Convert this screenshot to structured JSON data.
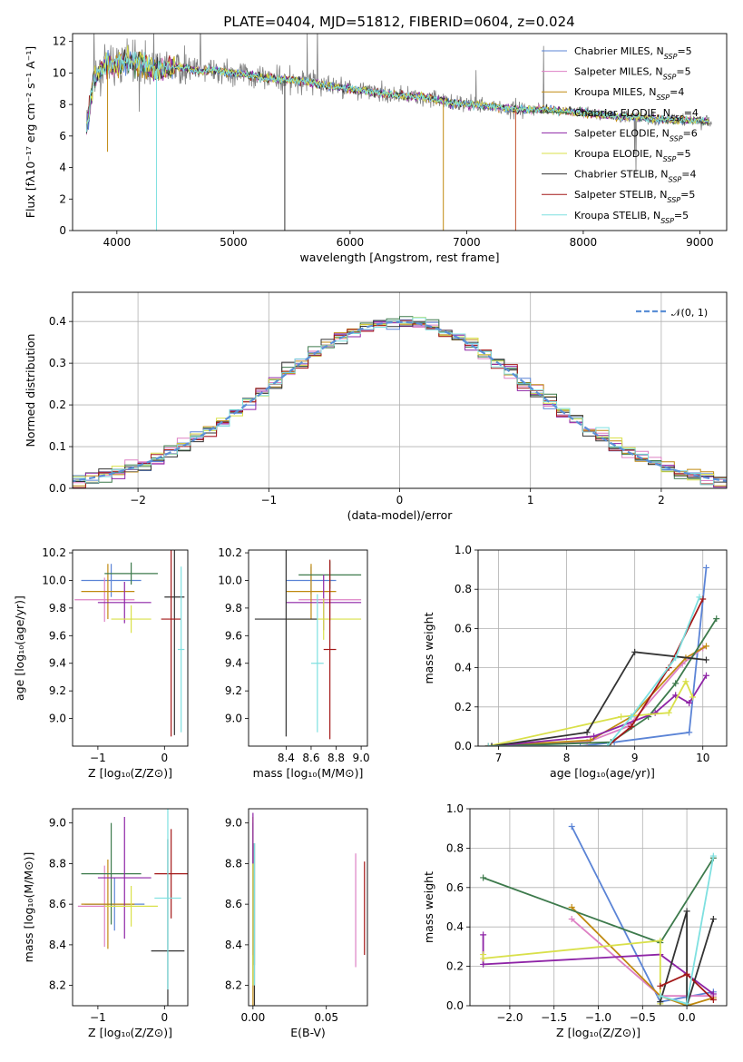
{
  "colors": [
    "#5b84d6",
    "#dd80c4",
    "#c08a10",
    "#3d7a4c",
    "#8e24a6",
    "#d9e04a",
    "#333333",
    "#a31818",
    "#7ee0e0"
  ],
  "chart_data": [
    {
      "id": "spectrum",
      "type": "line",
      "title": "PLATE=0404, MJD=51812, FIBERID=0604, z=0.024",
      "xlabel": "wavelength [Angstrom, rest frame]",
      "ylabel": "Flux [fλ10⁻¹⁷ erg cm⁻² s⁻¹ A⁻¹]",
      "xlim": [
        3620,
        9230
      ],
      "ylim": [
        0,
        12.5
      ],
      "xticks": [
        4000,
        5000,
        6000,
        7000,
        8000,
        9000
      ],
      "yticks": [
        0,
        2,
        4,
        6,
        8,
        10,
        12
      ],
      "continuum": {
        "x": [
          3720,
          3800,
          3900,
          4000,
          4100,
          4200,
          4300,
          4400,
          4500,
          4600,
          4700,
          4800,
          4900,
          5000,
          5200,
          5400,
          5600,
          5800,
          6000,
          6200,
          6400,
          6600,
          6800,
          7000,
          7200,
          7400,
          7600,
          7800,
          8000,
          8200,
          8400,
          8600,
          8800,
          9000,
          9100
        ],
        "y": [
          5.5,
          9.5,
          10.5,
          10.5,
          10.8,
          10.6,
          10.2,
          10.3,
          10.4,
          10.3,
          10.1,
          10.2,
          10.1,
          10.0,
          9.8,
          9.6,
          9.5,
          9.2,
          9.0,
          8.8,
          8.6,
          8.5,
          8.2,
          8.0,
          7.9,
          7.7,
          7.7,
          7.6,
          7.5,
          7.3,
          7.2,
          7.1,
          7.0,
          7.0,
          6.9
        ]
      },
      "series_names": [
        "Chabrier MILES, N_SSP=5",
        "Salpeter MILES, N_SSP=5",
        "Kroupa MILES, N_SSP=4",
        "Chabrier ELODIE, N_SSP=4",
        "Salpeter ELODIE, N_SSP=6",
        "Kroupa ELODIE, N_SSP=5",
        "Chabrier STELIB, N_SSP=4",
        "Salpeter STELIB, N_SSP=5",
        "Kroupa STELIB, N_SSP=5"
      ],
      "legend": "upper right"
    },
    {
      "id": "residuals",
      "type": "histogram",
      "xlabel": "(data-model)/error",
      "ylabel": "Normed distribution",
      "xlim": [
        -2.5,
        2.5
      ],
      "ylim": [
        0,
        0.47
      ],
      "xticks": [
        -2,
        -1,
        0,
        1,
        2
      ],
      "yticks": [
        0.0,
        0.1,
        0.2,
        0.3,
        0.4
      ],
      "legend_label": "𝒩(0, 1)",
      "legend": "upper right",
      "grid": true
    },
    {
      "id": "age_vs_Z",
      "type": "errorbar",
      "xlabel": "Z [log₁₀(Z/Z⊙)]",
      "ylabel": "age  [log₁₀(age/yr)]",
      "xlim": [
        -1.38,
        0.35
      ],
      "ylim": [
        8.8,
        10.22
      ],
      "xticks": [
        -1,
        0
      ],
      "yticks": [
        9.0,
        9.2,
        9.4,
        9.6,
        9.8,
        10.0,
        10.2
      ],
      "points": [
        {
          "x": -0.8,
          "xerr": 0.45,
          "y": 10.0,
          "yerr": 0.12
        },
        {
          "x": -0.9,
          "xerr": 0.45,
          "y": 9.86,
          "yerr": 0.16
        },
        {
          "x": -0.85,
          "xerr": 0.4,
          "y": 9.92,
          "yerr": 0.2
        },
        {
          "x": -0.5,
          "xerr": 0.4,
          "y": 10.05,
          "yerr": 0.08
        },
        {
          "x": -0.6,
          "xerr": 0.4,
          "y": 9.84,
          "yerr": 0.15
        },
        {
          "x": -0.5,
          "xerr": 0.3,
          "y": 9.72,
          "yerr": 0.1
        },
        {
          "x": 0.15,
          "xerr": 0.15,
          "y": 9.88,
          "yerr": 1.0
        },
        {
          "x": 0.1,
          "xerr": 0.15,
          "y": 9.72,
          "yerr": 0.85
        },
        {
          "x": 0.25,
          "xerr": 0.05,
          "y": 9.5,
          "yerr": 0.6
        }
      ]
    },
    {
      "id": "age_vs_mass",
      "type": "errorbar",
      "xlabel": "mass [log₁₀(M/M⊙)]",
      "ylabel": "",
      "xlim": [
        8.1,
        9.05
      ],
      "ylim": [
        8.8,
        10.22
      ],
      "xticks": [
        8.4,
        8.6,
        8.8,
        9.0
      ],
      "yticks": [
        9.0,
        9.2,
        9.4,
        9.6,
        9.8,
        10.0,
        10.2
      ],
      "points": [
        {
          "x": 8.6,
          "xerr": 0.2,
          "y": 10.0,
          "yerr": 0.1
        },
        {
          "x": 8.75,
          "xerr": 0.25,
          "y": 9.86,
          "yerr": 0.15
        },
        {
          "x": 8.6,
          "xerr": 0.2,
          "y": 9.92,
          "yerr": 0.2
        },
        {
          "x": 8.75,
          "xerr": 0.25,
          "y": 10.04,
          "yerr": 0.1
        },
        {
          "x": 8.7,
          "xerr": 0.3,
          "y": 9.84,
          "yerr": 0.2
        },
        {
          "x": 8.7,
          "xerr": 0.3,
          "y": 9.72,
          "yerr": 0.15
        },
        {
          "x": 8.4,
          "xerr": 0.25,
          "y": 9.72,
          "yerr": 0.85
        },
        {
          "x": 8.75,
          "xerr": 0.05,
          "y": 9.5,
          "yerr": 0.65
        },
        {
          "x": 8.65,
          "xerr": 0.05,
          "y": 9.4,
          "yerr": 0.5
        }
      ]
    },
    {
      "id": "weight_vs_age",
      "type": "line",
      "xlabel": "age  [log₁₀(age/yr)]",
      "ylabel": "mass weight",
      "xlim": [
        6.7,
        10.35
      ],
      "ylim": [
        0,
        1
      ],
      "xticks": [
        7,
        8,
        9,
        10
      ],
      "yticks": [
        0.0,
        0.2,
        0.4,
        0.6,
        0.8,
        1.0
      ],
      "grid": true,
      "series": [
        {
          "x": [
            6.85,
            8.2,
            8.7,
            9.8,
            10.05
          ],
          "y": [
            0.0,
            0.0,
            0.02,
            0.07,
            0.91
          ]
        },
        {
          "x": [
            6.85,
            8.3,
            8.9,
            9.7,
            10.0
          ],
          "y": [
            0.0,
            0.02,
            0.1,
            0.42,
            0.5
          ]
        },
        {
          "x": [
            6.85,
            8.35,
            8.95,
            9.75,
            10.05
          ],
          "y": [
            0.0,
            0.03,
            0.15,
            0.45,
            0.51
          ]
        },
        {
          "x": [
            6.9,
            8.65,
            9.2,
            9.6,
            10.2
          ],
          "y": [
            0.0,
            0.02,
            0.15,
            0.32,
            0.65
          ]
        },
        {
          "x": [
            6.9,
            8.4,
            9.3,
            9.6,
            9.8,
            10.05
          ],
          "y": [
            0.0,
            0.05,
            0.17,
            0.26,
            0.22,
            0.36
          ]
        },
        {
          "x": [
            6.85,
            8.8,
            9.5,
            9.75,
            9.85
          ],
          "y": [
            0.0,
            0.15,
            0.17,
            0.33,
            0.25
          ]
        },
        {
          "x": [
            6.9,
            8.3,
            9.0,
            10.05
          ],
          "y": [
            0.0,
            0.07,
            0.48,
            0.44
          ]
        },
        {
          "x": [
            6.85,
            8.6,
            8.95,
            9.5,
            10.0
          ],
          "y": [
            0.0,
            0.0,
            0.1,
            0.4,
            0.75
          ]
        },
        {
          "x": [
            6.85,
            8.6,
            8.95,
            9.6,
            9.95
          ],
          "y": [
            0.0,
            0.0,
            0.15,
            0.45,
            0.76
          ]
        }
      ]
    },
    {
      "id": "mass_vs_Z",
      "type": "errorbar",
      "xlabel": "Z [log₁₀(Z/Z⊙)]",
      "ylabel": "mass [log₁₀(M/M⊙)]",
      "xlim": [
        -1.38,
        0.35
      ],
      "ylim": [
        8.1,
        9.07
      ],
      "xticks": [
        -1,
        0
      ],
      "yticks": [
        8.2,
        8.4,
        8.6,
        8.8,
        9.0
      ],
      "points": [
        {
          "x": -0.75,
          "xerr": 0.45,
          "y": 8.6,
          "yerr": 0.13
        },
        {
          "x": -0.9,
          "xerr": 0.4,
          "y": 8.59,
          "yerr": 0.2
        },
        {
          "x": -0.85,
          "xerr": 0.4,
          "y": 8.6,
          "yerr": 0.22
        },
        {
          "x": -0.8,
          "xerr": 0.45,
          "y": 8.75,
          "yerr": 0.25
        },
        {
          "x": -0.6,
          "xerr": 0.4,
          "y": 8.73,
          "yerr": 0.3
        },
        {
          "x": -0.5,
          "xerr": 0.4,
          "y": 8.59,
          "yerr": 0.1
        },
        {
          "x": 0.05,
          "xerr": 0.25,
          "y": 8.37,
          "yerr": 0.55
        },
        {
          "x": 0.1,
          "xerr": 0.25,
          "y": 8.75,
          "yerr": 0.22
        },
        {
          "x": 0.05,
          "xerr": 0.2,
          "y": 8.63,
          "yerr": 0.45
        }
      ]
    },
    {
      "id": "mass_vs_ebv",
      "type": "errorbar",
      "xlabel": "E(B-V)",
      "ylabel": "",
      "xlim": [
        -0.003,
        0.078
      ],
      "ylim": [
        8.1,
        9.07
      ],
      "xticks": [
        0.0,
        0.05
      ],
      "yticks": [
        8.2,
        8.4,
        8.6,
        8.8,
        9.0
      ],
      "points": [
        {
          "x": 0.0,
          "xerr": 0,
          "y": 8.6,
          "yerr": 0.4
        },
        {
          "x": 0.07,
          "xerr": 0,
          "y": 8.57,
          "yerr": 0.28
        },
        {
          "x": 0.0,
          "xerr": 0,
          "y": 8.55,
          "yerr": 0.48
        },
        {
          "x": 0.001,
          "xerr": 0,
          "y": 8.6,
          "yerr": 0.3
        },
        {
          "x": 0.0,
          "xerr": 0,
          "y": 8.7,
          "yerr": 0.35
        },
        {
          "x": 0.0,
          "xerr": 0,
          "y": 8.5,
          "yerr": 0.3
        },
        {
          "x": 0.001,
          "xerr": 0,
          "y": 8.5,
          "yerr": 0.4
        },
        {
          "x": 0.076,
          "xerr": 0,
          "y": 8.58,
          "yerr": 0.23
        },
        {
          "x": 0.001,
          "xerr": 0,
          "y": 8.55,
          "yerr": 0.35
        }
      ]
    },
    {
      "id": "weight_vs_Z",
      "type": "line",
      "xlabel": "Z [log₁₀(Z/Z⊙)]",
      "ylabel": "mass weight",
      "xlim": [
        -2.45,
        0.45
      ],
      "ylim": [
        0,
        1
      ],
      "xticks": [
        -2.0,
        -1.5,
        -1.0,
        -0.5,
        0.0
      ],
      "yticks": [
        0.0,
        0.2,
        0.4,
        0.6,
        0.8,
        1.0
      ],
      "grid": true,
      "series": [
        {
          "x": [
            -1.3,
            -0.3,
            0.3
          ],
          "y": [
            0.91,
            0.02,
            0.07
          ]
        },
        {
          "x": [
            -1.3,
            -0.3,
            0.3
          ],
          "y": [
            0.44,
            0.05,
            0.05
          ]
        },
        {
          "x": [
            -1.3,
            -0.3,
            0.0,
            0.3
          ],
          "y": [
            0.5,
            0.05,
            0.0,
            0.04
          ]
        },
        {
          "x": [
            -2.3,
            -0.3,
            0.3
          ],
          "y": [
            0.65,
            0.32,
            0.75
          ]
        },
        {
          "x": [
            -2.3,
            -2.3,
            -0.3,
            0.3
          ],
          "y": [
            0.36,
            0.21,
            0.26,
            0.06
          ]
        },
        {
          "x": [
            -2.3,
            -2.3,
            -0.3,
            -0.3
          ],
          "y": [
            0.26,
            0.24,
            0.33,
            0.01
          ]
        },
        {
          "x": [
            -0.3,
            0.0,
            0.0,
            0.3
          ],
          "y": [
            0.02,
            0.48,
            0.0,
            0.44
          ]
        },
        {
          "x": [
            -0.3,
            0.0,
            0.3
          ],
          "y": [
            0.1,
            0.16,
            0.03
          ]
        },
        {
          "x": [
            -0.3,
            0.0,
            0.3
          ],
          "y": [
            0.05,
            0.01,
            0.76
          ]
        }
      ]
    }
  ]
}
